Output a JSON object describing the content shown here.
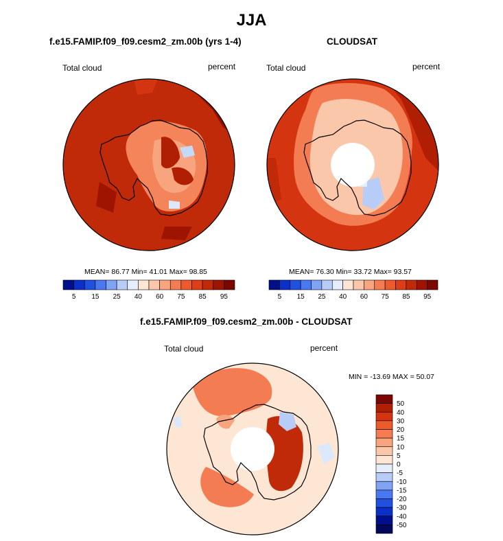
{
  "figure": {
    "title": "JJA",
    "panels": [
      {
        "title": "f.e15.FAMIP.f09_f09.cesm2_zm.00b (yrs 1-4)",
        "left_label": "Total cloud",
        "right_label": "percent",
        "stats": "MEAN=  86.77  Min=  41.01   Max=  98.85"
      },
      {
        "title": "CLOUDSAT",
        "left_label": "Total cloud",
        "right_label": "percent",
        "stats": "MEAN=  76.30  Min=  33.72  Max=  93.57"
      },
      {
        "title": "f.e15.FAMIP.f09_f09.cesm2_zm.00b - CLOUDSAT",
        "left_label": "Total cloud",
        "right_label": "percent",
        "stats": "MIN = -13.69 MAX =  50.07"
      }
    ]
  },
  "chart_data": [
    {
      "type": "heatmap",
      "projection": "south-polar-stereographic",
      "region": "Antarctica",
      "title": "f.e15.FAMIP.f09_f09.cesm2_zm.00b (yrs 1-4)",
      "variable": "Total cloud",
      "units": "percent",
      "mean": 86.77,
      "min": 41.01,
      "max": 98.85,
      "colorbar": {
        "orientation": "horizontal",
        "tick_labels": [
          "5",
          "15",
          "25",
          "40",
          "60",
          "75",
          "85",
          "95"
        ],
        "colors": [
          "#000f8a",
          "#0a30c8",
          "#2050e0",
          "#4a78f0",
          "#7fa3f5",
          "#b7cdf8",
          "#e5eefc",
          "#fde6d4",
          "#fbc7aa",
          "#f8a47e",
          "#f47c52",
          "#ec5a2e",
          "#dd3e18",
          "#c02a08",
          "#9e1400",
          "#7a0800"
        ]
      }
    },
    {
      "type": "heatmap",
      "projection": "south-polar-stereographic",
      "region": "Antarctica",
      "title": "CLOUDSAT",
      "variable": "Total cloud",
      "units": "percent",
      "mean": 76.3,
      "min": 33.72,
      "max": 93.57,
      "colorbar": {
        "orientation": "horizontal",
        "tick_labels": [
          "5",
          "15",
          "25",
          "40",
          "60",
          "75",
          "85",
          "95"
        ],
        "colors": [
          "#000f8a",
          "#0a30c8",
          "#2050e0",
          "#4a78f0",
          "#7fa3f5",
          "#b7cdf8",
          "#e5eefc",
          "#fde6d4",
          "#fbc7aa",
          "#f8a47e",
          "#f47c52",
          "#ec5a2e",
          "#dd3e18",
          "#c02a08",
          "#9e1400",
          "#7a0800"
        ]
      }
    },
    {
      "type": "heatmap",
      "projection": "south-polar-stereographic",
      "region": "Antarctica",
      "title": "f.e15.FAMIP.f09_f09.cesm2_zm.00b - CLOUDSAT",
      "variable": "Total cloud",
      "units": "percent",
      "min": -13.69,
      "max": 50.07,
      "colorbar": {
        "orientation": "vertical",
        "tick_labels": [
          "50",
          "40",
          "30",
          "20",
          "15",
          "10",
          "5",
          "0",
          "-5",
          "-10",
          "-15",
          "-20",
          "-30",
          "-40",
          "-50"
        ],
        "colors": [
          "#7a0800",
          "#b01e04",
          "#d43410",
          "#ec5a2e",
          "#f47c52",
          "#f8a47e",
          "#fbc7aa",
          "#fde6d4",
          "#e5eefc",
          "#b7cdf8",
          "#7fa3f5",
          "#4a78f0",
          "#2050e0",
          "#0a30c8",
          "#000f8a",
          "#00085a"
        ]
      }
    }
  ]
}
